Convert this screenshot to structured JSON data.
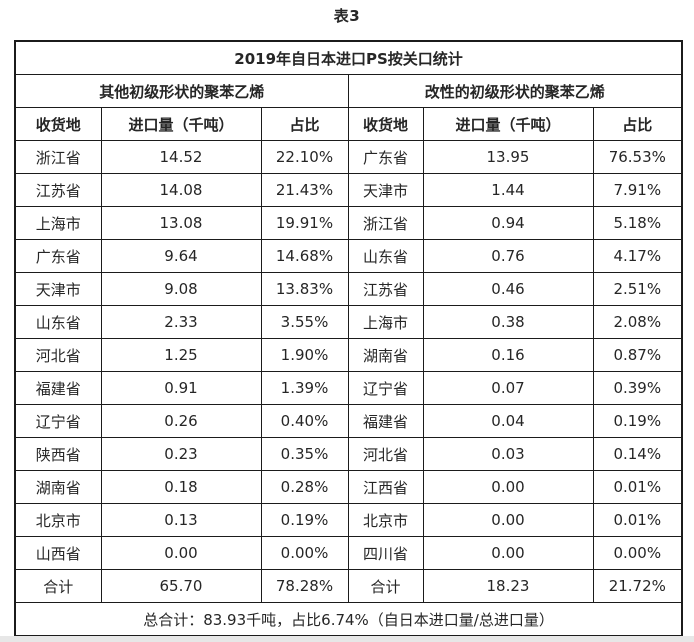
{
  "page_title": "表3",
  "table": {
    "title": "2019年自日本进口PS按关口统计",
    "group_headers": [
      "其他初级形状的聚苯乙烯",
      "改性的初级形状的聚苯乙烯"
    ],
    "column_headers": [
      "收货地",
      "进口量（千吨）",
      "占比",
      "收货地",
      "进口量（千吨）",
      "占比"
    ],
    "rows": [
      [
        "浙江省",
        "14.52",
        "22.10%",
        "广东省",
        "13.95",
        "76.53%"
      ],
      [
        "江苏省",
        "14.08",
        "21.43%",
        "天津市",
        "1.44",
        "7.91%"
      ],
      [
        "上海市",
        "13.08",
        "19.91%",
        "浙江省",
        "0.94",
        "5.18%"
      ],
      [
        "广东省",
        "9.64",
        "14.68%",
        "山东省",
        "0.76",
        "4.17%"
      ],
      [
        "天津市",
        "9.08",
        "13.83%",
        "江苏省",
        "0.46",
        "2.51%"
      ],
      [
        "山东省",
        "2.33",
        "3.55%",
        "上海市",
        "0.38",
        "2.08%"
      ],
      [
        "河北省",
        "1.25",
        "1.90%",
        "湖南省",
        "0.16",
        "0.87%"
      ],
      [
        "福建省",
        "0.91",
        "1.39%",
        "辽宁省",
        "0.07",
        "0.39%"
      ],
      [
        "辽宁省",
        "0.26",
        "0.40%",
        "福建省",
        "0.04",
        "0.19%"
      ],
      [
        "陕西省",
        "0.23",
        "0.35%",
        "河北省",
        "0.03",
        "0.14%"
      ],
      [
        "湖南省",
        "0.18",
        "0.28%",
        "江西省",
        "0.00",
        "0.01%"
      ],
      [
        "北京市",
        "0.13",
        "0.19%",
        "北京市",
        "0.00",
        "0.01%"
      ],
      [
        "山西省",
        "0.00",
        "0.00%",
        "四川省",
        "0.00",
        "0.00%"
      ]
    ],
    "totals": [
      "合计",
      "65.70",
      "78.28%",
      "合计",
      "18.23",
      "21.72%"
    ],
    "footer": "总合计：83.93千吨，占比6.74%（自日本进口量/总进口量）"
  },
  "colors": {
    "border": "#1b1b1b",
    "text": "#262626",
    "background": "#ffffff"
  }
}
